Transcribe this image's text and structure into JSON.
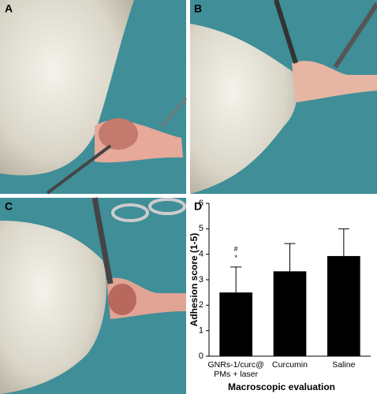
{
  "panel_labels": [
    "A",
    "B",
    "C"
  ],
  "chart_data": {
    "type": "bar",
    "panel_label": "D",
    "y_label": "Adhesion score (1-5)",
    "x_label": "Macroscopic evaluation",
    "categories": [
      "GNRs-1/curc@ PMs + laser",
      "Curcumin",
      "Saline"
    ],
    "values": [
      2.5,
      3.33,
      3.93
    ],
    "errors": [
      1.0,
      1.09,
      1.07
    ],
    "color": "#000000",
    "ylim": [
      0,
      6
    ],
    "yticks": [
      0,
      1,
      2,
      3,
      4,
      5,
      6
    ],
    "annotations": [
      {
        "category": 0,
        "text": "#"
      },
      {
        "category": 0,
        "text": "*"
      }
    ]
  }
}
